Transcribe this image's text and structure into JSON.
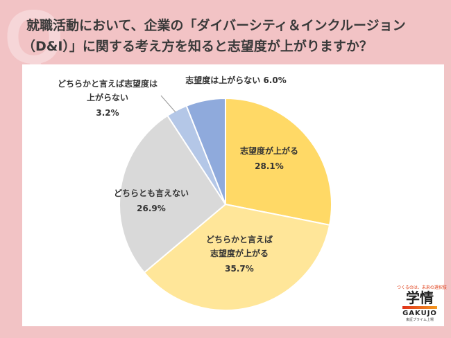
{
  "title": {
    "line1": "就職活動において、企業の「ダイバーシティ＆インクルージョン",
    "line2": "（D&I）」に関する考え方を知ると志望度が上がりますか？"
  },
  "chart_data": {
    "type": "pie",
    "start": "top",
    "direction": "clockwise",
    "slices": [
      {
        "label": [
          "志望度が上がる"
        ],
        "value": 28.1,
        "value_label": "28.1%",
        "color": "#ffd966"
      },
      {
        "label": [
          "どちらかと言えば",
          "志望度が上がる"
        ],
        "value": 35.7,
        "value_label": "35.7%",
        "color": "#ffe699"
      },
      {
        "label": [
          "どちらとも言えない"
        ],
        "value": 26.9,
        "value_label": "26.9%",
        "color": "#d9d9d9"
      },
      {
        "label": [
          "どちらかと言えば志望度は",
          "上がらない"
        ],
        "value": 3.2,
        "value_label": "3.2%",
        "color": "#b4c7e7"
      },
      {
        "label": [
          "志望度は上がらない"
        ],
        "value": 6.0,
        "value_label": "6.0%",
        "color": "#8faadc"
      }
    ]
  },
  "logo": {
    "tagline": "つくるのは、未来の選択肢",
    "name_jp": "学情",
    "name_en": "GAKUJO",
    "note": "東証プライム上場"
  }
}
